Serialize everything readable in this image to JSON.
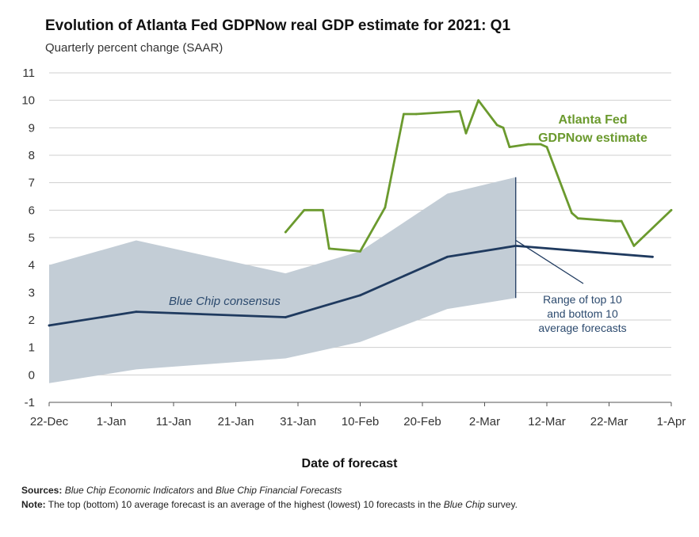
{
  "chart_data": {
    "type": "line",
    "title": "Evolution of Atlanta Fed GDPNow real GDP estimate for 2021: Q1",
    "subtitle": "Quarterly percent change (SAAR)",
    "xlabel": "Date of forecast",
    "ylabel": "",
    "ylim": [
      -1,
      11
    ],
    "yticks": [
      "-1",
      "0",
      "1",
      "2",
      "3",
      "4",
      "5",
      "6",
      "7",
      "8",
      "9",
      "10",
      "11"
    ],
    "xlim": [
      "2020-12-22",
      "2021-04-01"
    ],
    "xticks": [
      {
        "date": "2020-12-22",
        "label": "22-Dec"
      },
      {
        "date": "2021-01-01",
        "label": "1-Jan"
      },
      {
        "date": "2021-01-11",
        "label": "11-Jan"
      },
      {
        "date": "2021-01-21",
        "label": "21-Jan"
      },
      {
        "date": "2021-01-31",
        "label": "31-Jan"
      },
      {
        "date": "2021-02-10",
        "label": "10-Feb"
      },
      {
        "date": "2021-02-20",
        "label": "20-Feb"
      },
      {
        "date": "2021-03-02",
        "label": "2-Mar"
      },
      {
        "date": "2021-03-12",
        "label": "12-Mar"
      },
      {
        "date": "2021-03-22",
        "label": "22-Mar"
      },
      {
        "date": "2021-04-01",
        "label": "1-Apr"
      }
    ],
    "grid": true,
    "series": [
      {
        "name": "Atlanta Fed GDPNow estimate",
        "color": "#6b9a2e",
        "points": [
          {
            "x": "2021-01-29",
            "y": 5.2
          },
          {
            "x": "2021-02-01",
            "y": 6.0
          },
          {
            "x": "2021-02-04",
            "y": 6.0
          },
          {
            "x": "2021-02-05",
            "y": 4.6
          },
          {
            "x": "2021-02-10",
            "y": 4.5
          },
          {
            "x": "2021-02-14",
            "y": 6.1
          },
          {
            "x": "2021-02-17",
            "y": 9.5
          },
          {
            "x": "2021-02-19",
            "y": 9.5
          },
          {
            "x": "2021-02-26",
            "y": 9.6
          },
          {
            "x": "2021-02-27",
            "y": 8.8
          },
          {
            "x": "2021-03-01",
            "y": 10.0
          },
          {
            "x": "2021-03-04",
            "y": 9.1
          },
          {
            "x": "2021-03-05",
            "y": 9.0
          },
          {
            "x": "2021-03-06",
            "y": 8.3
          },
          {
            "x": "2021-03-09",
            "y": 8.4
          },
          {
            "x": "2021-03-11",
            "y": 8.4
          },
          {
            "x": "2021-03-12",
            "y": 8.3
          },
          {
            "x": "2021-03-16",
            "y": 5.9
          },
          {
            "x": "2021-03-17",
            "y": 5.7
          },
          {
            "x": "2021-03-23",
            "y": 5.6
          },
          {
            "x": "2021-03-24",
            "y": 5.6
          },
          {
            "x": "2021-03-26",
            "y": 4.7
          },
          {
            "x": "2021-04-01",
            "y": 6.0
          }
        ]
      },
      {
        "name": "Blue Chip consensus",
        "color": "#1f3a5f",
        "points": [
          {
            "x": "2020-12-22",
            "y": 1.8
          },
          {
            "x": "2021-01-05",
            "y": 2.3
          },
          {
            "x": "2021-01-29",
            "y": 2.1
          },
          {
            "x": "2021-02-10",
            "y": 2.9
          },
          {
            "x": "2021-02-24",
            "y": 4.3
          },
          {
            "x": "2021-03-07",
            "y": 4.7
          },
          {
            "x": "2021-03-29",
            "y": 4.3
          }
        ]
      }
    ],
    "band": {
      "name": "Range of top 10 and bottom 10 average forecasts",
      "color": "#c3cdd6",
      "upper": [
        {
          "x": "2020-12-22",
          "y": 4.0
        },
        {
          "x": "2021-01-05",
          "y": 4.9
        },
        {
          "x": "2021-01-29",
          "y": 3.7
        },
        {
          "x": "2021-02-10",
          "y": 4.5
        },
        {
          "x": "2021-02-24",
          "y": 6.6
        },
        {
          "x": "2021-03-07",
          "y": 7.2
        }
      ],
      "lower": [
        {
          "x": "2020-12-22",
          "y": -0.3
        },
        {
          "x": "2021-01-05",
          "y": 0.2
        },
        {
          "x": "2021-01-29",
          "y": 0.6
        },
        {
          "x": "2021-02-10",
          "y": 1.2
        },
        {
          "x": "2021-02-24",
          "y": 2.4
        },
        {
          "x": "2021-03-07",
          "y": 2.8
        }
      ]
    },
    "annotations": {
      "gdpnow_line1": "Atlanta Fed",
      "gdpnow_line2": "GDPNow estimate",
      "bluechip": "Blue Chip consensus",
      "range_line1": "Range of top 10",
      "range_line2": "and bottom 10",
      "range_line3": "average forecasts"
    }
  },
  "footer": {
    "sources_label": "Sources:",
    "sources_text1": "Blue Chip Economic Indicators",
    "sources_and": "and",
    "sources_text2": "Blue Chip Financial Forecasts",
    "note_label": "Note:",
    "note_text1": "The top (bottom) 10 average forecast is an average of the highest (lowest) 10 forecasts in the",
    "note_italic": "Blue Chip",
    "note_text2": "survey."
  }
}
